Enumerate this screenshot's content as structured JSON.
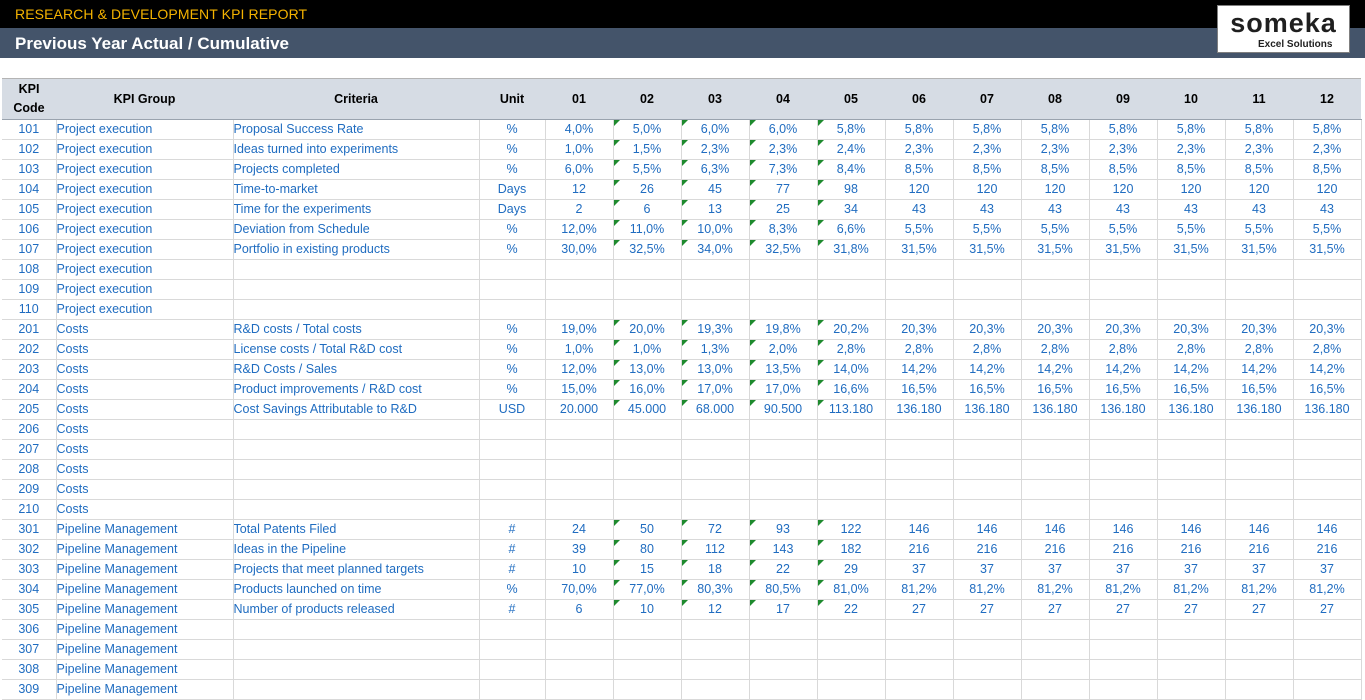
{
  "header": {
    "report_title": "RESEARCH & DEVELOPMENT KPI REPORT",
    "subtitle": "Previous Year Actual / Cumulative",
    "logo_name": "someka",
    "logo_tagline": "Excel Solutions"
  },
  "colors": {
    "title_text": "#f5b300",
    "subtitle_bar": "#44546a",
    "header_fill": "#d6dce4",
    "cell_text": "#1f6cc0",
    "comment_marker": "#1e8a2e"
  },
  "columns": [
    "KPI Code",
    "KPI Group",
    "Criteria",
    "Unit",
    "01",
    "02",
    "03",
    "04",
    "05",
    "06",
    "07",
    "08",
    "09",
    "10",
    "11",
    "12"
  ],
  "comment_marker_columns": [
    "02",
    "03",
    "04",
    "05"
  ],
  "rows": [
    {
      "code": "101",
      "group": "Project execution",
      "criteria": "Proposal Success Rate",
      "unit": "%",
      "values": [
        "4,0%",
        "5,0%",
        "6,0%",
        "6,0%",
        "5,8%",
        "5,8%",
        "5,8%",
        "5,8%",
        "5,8%",
        "5,8%",
        "5,8%",
        "5,8%"
      ]
    },
    {
      "code": "102",
      "group": "Project execution",
      "criteria": "Ideas turned into experiments",
      "unit": "%",
      "values": [
        "1,0%",
        "1,5%",
        "2,3%",
        "2,3%",
        "2,4%",
        "2,3%",
        "2,3%",
        "2,3%",
        "2,3%",
        "2,3%",
        "2,3%",
        "2,3%"
      ]
    },
    {
      "code": "103",
      "group": "Project execution",
      "criteria": "Projects completed",
      "unit": "%",
      "values": [
        "6,0%",
        "5,5%",
        "6,3%",
        "7,3%",
        "8,4%",
        "8,5%",
        "8,5%",
        "8,5%",
        "8,5%",
        "8,5%",
        "8,5%",
        "8,5%"
      ]
    },
    {
      "code": "104",
      "group": "Project execution",
      "criteria": "Time-to-market",
      "unit": "Days",
      "values": [
        "12",
        "26",
        "45",
        "77",
        "98",
        "120",
        "120",
        "120",
        "120",
        "120",
        "120",
        "120"
      ]
    },
    {
      "code": "105",
      "group": "Project execution",
      "criteria": "Time for the experiments",
      "unit": "Days",
      "values": [
        "2",
        "6",
        "13",
        "25",
        "34",
        "43",
        "43",
        "43",
        "43",
        "43",
        "43",
        "43"
      ]
    },
    {
      "code": "106",
      "group": "Project execution",
      "criteria": "Deviation from Schedule",
      "unit": "%",
      "values": [
        "12,0%",
        "11,0%",
        "10,0%",
        "8,3%",
        "6,6%",
        "5,5%",
        "5,5%",
        "5,5%",
        "5,5%",
        "5,5%",
        "5,5%",
        "5,5%"
      ]
    },
    {
      "code": "107",
      "group": "Project execution",
      "criteria": "Portfolio in existing products",
      "unit": "%",
      "values": [
        "30,0%",
        "32,5%",
        "34,0%",
        "32,5%",
        "31,8%",
        "31,5%",
        "31,5%",
        "31,5%",
        "31,5%",
        "31,5%",
        "31,5%",
        "31,5%"
      ]
    },
    {
      "code": "108",
      "group": "Project execution",
      "criteria": "",
      "unit": "",
      "values": [
        "",
        "",
        "",
        "",
        "",
        "",
        "",
        "",
        "",
        "",
        "",
        ""
      ]
    },
    {
      "code": "109",
      "group": "Project execution",
      "criteria": "",
      "unit": "",
      "values": [
        "",
        "",
        "",
        "",
        "",
        "",
        "",
        "",
        "",
        "",
        "",
        ""
      ]
    },
    {
      "code": "110",
      "group": "Project execution",
      "criteria": "",
      "unit": "",
      "values": [
        "",
        "",
        "",
        "",
        "",
        "",
        "",
        "",
        "",
        "",
        "",
        ""
      ]
    },
    {
      "code": "201",
      "group": "Costs",
      "criteria": "R&D costs / Total costs",
      "unit": "%",
      "values": [
        "19,0%",
        "20,0%",
        "19,3%",
        "19,8%",
        "20,2%",
        "20,3%",
        "20,3%",
        "20,3%",
        "20,3%",
        "20,3%",
        "20,3%",
        "20,3%"
      ]
    },
    {
      "code": "202",
      "group": "Costs",
      "criteria": "License costs / Total R&D cost",
      "unit": "%",
      "values": [
        "1,0%",
        "1,0%",
        "1,3%",
        "2,0%",
        "2,8%",
        "2,8%",
        "2,8%",
        "2,8%",
        "2,8%",
        "2,8%",
        "2,8%",
        "2,8%"
      ]
    },
    {
      "code": "203",
      "group": "Costs",
      "criteria": "R&D Costs / Sales",
      "unit": "%",
      "values": [
        "12,0%",
        "13,0%",
        "13,0%",
        "13,5%",
        "14,0%",
        "14,2%",
        "14,2%",
        "14,2%",
        "14,2%",
        "14,2%",
        "14,2%",
        "14,2%"
      ]
    },
    {
      "code": "204",
      "group": "Costs",
      "criteria": "Product improvements / R&D cost",
      "unit": "%",
      "values": [
        "15,0%",
        "16,0%",
        "17,0%",
        "17,0%",
        "16,6%",
        "16,5%",
        "16,5%",
        "16,5%",
        "16,5%",
        "16,5%",
        "16,5%",
        "16,5%"
      ]
    },
    {
      "code": "205",
      "group": "Costs",
      "criteria": "Cost Savings Attributable to R&D",
      "unit": "USD",
      "values": [
        "20.000",
        "45.000",
        "68.000",
        "90.500",
        "113.180",
        "136.180",
        "136.180",
        "136.180",
        "136.180",
        "136.180",
        "136.180",
        "136.180"
      ]
    },
    {
      "code": "206",
      "group": "Costs",
      "criteria": "",
      "unit": "",
      "values": [
        "",
        "",
        "",
        "",
        "",
        "",
        "",
        "",
        "",
        "",
        "",
        ""
      ]
    },
    {
      "code": "207",
      "group": "Costs",
      "criteria": "",
      "unit": "",
      "values": [
        "",
        "",
        "",
        "",
        "",
        "",
        "",
        "",
        "",
        "",
        "",
        ""
      ]
    },
    {
      "code": "208",
      "group": "Costs",
      "criteria": "",
      "unit": "",
      "values": [
        "",
        "",
        "",
        "",
        "",
        "",
        "",
        "",
        "",
        "",
        "",
        ""
      ]
    },
    {
      "code": "209",
      "group": "Costs",
      "criteria": "",
      "unit": "",
      "values": [
        "",
        "",
        "",
        "",
        "",
        "",
        "",
        "",
        "",
        "",
        "",
        ""
      ]
    },
    {
      "code": "210",
      "group": "Costs",
      "criteria": "",
      "unit": "",
      "values": [
        "",
        "",
        "",
        "",
        "",
        "",
        "",
        "",
        "",
        "",
        "",
        ""
      ]
    },
    {
      "code": "301",
      "group": "Pipeline Management",
      "criteria": "Total Patents Filed",
      "unit": "#",
      "values": [
        "24",
        "50",
        "72",
        "93",
        "122",
        "146",
        "146",
        "146",
        "146",
        "146",
        "146",
        "146"
      ]
    },
    {
      "code": "302",
      "group": "Pipeline Management",
      "criteria": "Ideas in the Pipeline",
      "unit": "#",
      "values": [
        "39",
        "80",
        "112",
        "143",
        "182",
        "216",
        "216",
        "216",
        "216",
        "216",
        "216",
        "216"
      ]
    },
    {
      "code": "303",
      "group": "Pipeline Management",
      "criteria": "Projects that meet planned targets",
      "unit": "#",
      "values": [
        "10",
        "15",
        "18",
        "22",
        "29",
        "37",
        "37",
        "37",
        "37",
        "37",
        "37",
        "37"
      ]
    },
    {
      "code": "304",
      "group": "Pipeline Management",
      "criteria": "Products launched on time",
      "unit": "%",
      "values": [
        "70,0%",
        "77,0%",
        "80,3%",
        "80,5%",
        "81,0%",
        "81,2%",
        "81,2%",
        "81,2%",
        "81,2%",
        "81,2%",
        "81,2%",
        "81,2%"
      ]
    },
    {
      "code": "305",
      "group": "Pipeline Management",
      "criteria": "Number of products released",
      "unit": "#",
      "values": [
        "6",
        "10",
        "12",
        "17",
        "22",
        "27",
        "27",
        "27",
        "27",
        "27",
        "27",
        "27"
      ]
    },
    {
      "code": "306",
      "group": "Pipeline Management",
      "criteria": "",
      "unit": "",
      "values": [
        "",
        "",
        "",
        "",
        "",
        "",
        "",
        "",
        "",
        "",
        "",
        ""
      ]
    },
    {
      "code": "307",
      "group": "Pipeline Management",
      "criteria": "",
      "unit": "",
      "values": [
        "",
        "",
        "",
        "",
        "",
        "",
        "",
        "",
        "",
        "",
        "",
        ""
      ]
    },
    {
      "code": "308",
      "group": "Pipeline Management",
      "criteria": "",
      "unit": "",
      "values": [
        "",
        "",
        "",
        "",
        "",
        "",
        "",
        "",
        "",
        "",
        "",
        ""
      ]
    },
    {
      "code": "309",
      "group": "Pipeline Management",
      "criteria": "",
      "unit": "",
      "values": [
        "",
        "",
        "",
        "",
        "",
        "",
        "",
        "",
        "",
        "",
        "",
        ""
      ]
    }
  ]
}
